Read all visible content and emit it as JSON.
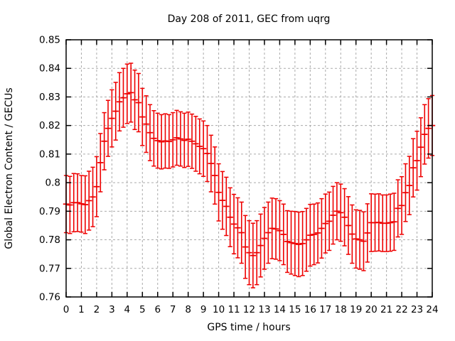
{
  "title": "Day 208 of 2011, GEC from uqrg",
  "colors": {
    "series": "#ee0000",
    "grid": "#aaaaaa",
    "axis": "#000000",
    "background": "#ffffff"
  },
  "chart_data": {
    "type": "errorbar",
    "title": "Day 208 of 2011, GEC from uqrg",
    "xlabel": "GPS time / hours",
    "ylabel": "Global Electron Content / GECUs",
    "xlim": [
      0,
      24
    ],
    "ylim": [
      0.76,
      0.85
    ],
    "grid": true,
    "legend": "none",
    "xticks": [
      0,
      1,
      2,
      3,
      4,
      5,
      6,
      7,
      8,
      9,
      10,
      11,
      12,
      13,
      14,
      15,
      16,
      17,
      18,
      19,
      20,
      21,
      22,
      23,
      24
    ],
    "ytick_labels": [
      "0.76",
      "0.77",
      "0.78",
      "0.79",
      "0.8",
      "0.81",
      "0.82",
      "0.83",
      "0.84",
      "0.85"
    ],
    "yticks": [
      0.76,
      0.77,
      0.78,
      0.79,
      0.8,
      0.81,
      0.82,
      0.83,
      0.84,
      0.85
    ],
    "series": [
      {
        "name": "GEC",
        "color": "#ee0000",
        "x": [
          0,
          0.25,
          0.5,
          0.75,
          1,
          1.25,
          1.5,
          1.75,
          2,
          2.25,
          2.5,
          2.75,
          3,
          3.25,
          3.5,
          3.75,
          4,
          4.25,
          4.5,
          4.75,
          5,
          5.25,
          5.5,
          5.75,
          6,
          6.25,
          6.5,
          6.75,
          7,
          7.25,
          7.5,
          7.75,
          8,
          8.25,
          8.5,
          8.75,
          9,
          9.25,
          9.5,
          9.75,
          10,
          10.25,
          10.5,
          10.75,
          11,
          11.25,
          11.5,
          11.75,
          12,
          12.25,
          12.5,
          12.75,
          13,
          13.25,
          13.5,
          13.75,
          14,
          14.25,
          14.5,
          14.75,
          15,
          15.25,
          15.5,
          15.75,
          16,
          16.25,
          16.5,
          16.75,
          17,
          17.25,
          17.5,
          17.75,
          18,
          18.25,
          18.5,
          18.75,
          19,
          19.25,
          19.5,
          19.75,
          20,
          20.25,
          20.5,
          20.75,
          21,
          21.25,
          21.5,
          21.75,
          22,
          22.25,
          22.5,
          22.75,
          23,
          23.25,
          23.5,
          23.75,
          24
        ],
        "y": [
          0.7925,
          0.7922,
          0.793,
          0.793,
          0.7926,
          0.7923,
          0.7937,
          0.795,
          0.7986,
          0.807,
          0.8145,
          0.819,
          0.8225,
          0.825,
          0.8283,
          0.8297,
          0.8311,
          0.8315,
          0.829,
          0.828,
          0.823,
          0.8205,
          0.8175,
          0.8155,
          0.8147,
          0.8143,
          0.8146,
          0.8144,
          0.815,
          0.8157,
          0.8153,
          0.8148,
          0.8152,
          0.8145,
          0.8136,
          0.8127,
          0.8119,
          0.8102,
          0.8067,
          0.8025,
          0.7966,
          0.7938,
          0.7917,
          0.7879,
          0.7855,
          0.7842,
          0.7825,
          0.7775,
          0.7755,
          0.7745,
          0.7755,
          0.778,
          0.7805,
          0.7825,
          0.784,
          0.7838,
          0.7832,
          0.7819,
          0.7794,
          0.779,
          0.7787,
          0.7784,
          0.7787,
          0.78,
          0.7816,
          0.7819,
          0.7824,
          0.784,
          0.7857,
          0.7865,
          0.7886,
          0.79,
          0.7895,
          0.7879,
          0.785,
          0.782,
          0.7803,
          0.78,
          0.7795,
          0.7824,
          0.786,
          0.786,
          0.7861,
          0.7858,
          0.7858,
          0.786,
          0.7863,
          0.791,
          0.792,
          0.7965,
          0.799,
          0.8052,
          0.8077,
          0.8124,
          0.8169,
          0.819,
          0.82
        ],
        "yerr": [
          0.01,
          0.01,
          0.0102,
          0.0101,
          0.0099,
          0.0101,
          0.0103,
          0.0104,
          0.0105,
          0.0102,
          0.01,
          0.0098,
          0.01,
          0.0101,
          0.0102,
          0.0103,
          0.0104,
          0.0103,
          0.0104,
          0.0102,
          0.01,
          0.0099,
          0.0098,
          0.0097,
          0.0096,
          0.0095,
          0.0095,
          0.0094,
          0.0095,
          0.0096,
          0.0095,
          0.0095,
          0.0095,
          0.0095,
          0.0096,
          0.0096,
          0.0097,
          0.0098,
          0.0099,
          0.01,
          0.01,
          0.0101,
          0.0102,
          0.0103,
          0.0104,
          0.0105,
          0.0107,
          0.011,
          0.0112,
          0.0113,
          0.0112,
          0.011,
          0.0108,
          0.0107,
          0.0106,
          0.0106,
          0.0105,
          0.0106,
          0.0108,
          0.011,
          0.0112,
          0.0113,
          0.0112,
          0.011,
          0.0108,
          0.0106,
          0.0105,
          0.0104,
          0.0103,
          0.0102,
          0.0101,
          0.01,
          0.01,
          0.01,
          0.0101,
          0.0102,
          0.0102,
          0.0103,
          0.0103,
          0.0102,
          0.0101,
          0.01,
          0.01,
          0.0099,
          0.0099,
          0.01,
          0.01,
          0.01,
          0.0101,
          0.0101,
          0.0102,
          0.0102,
          0.0103,
          0.0103,
          0.0104,
          0.0104,
          0.0105
        ]
      }
    ]
  }
}
